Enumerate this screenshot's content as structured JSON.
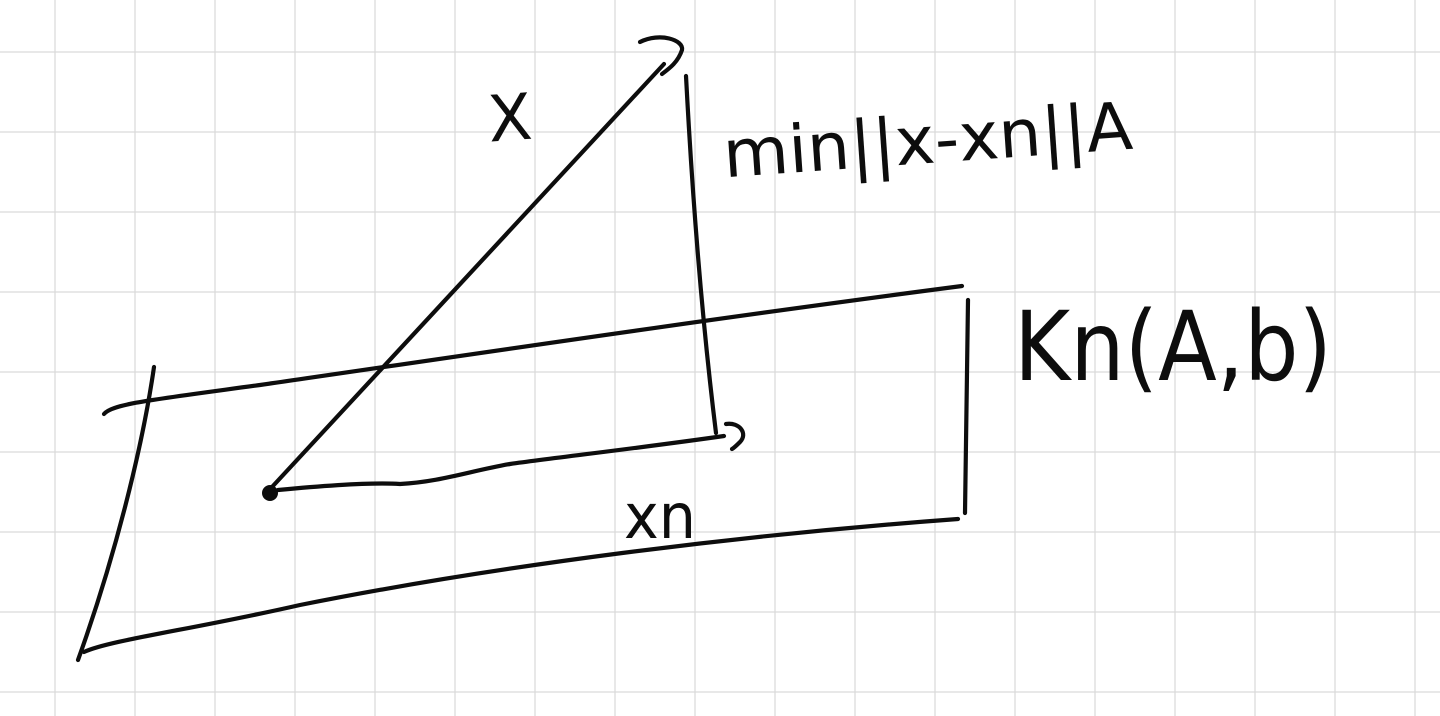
{
  "labels": {
    "vector_x": "X",
    "objective": "min||x-xn||A",
    "subspace": "Kn(A,b)",
    "approx_xn": "xn"
  },
  "colors": {
    "ink": "#0d0d0d",
    "grid": "#d9d9d9",
    "background": "#ffffff"
  }
}
